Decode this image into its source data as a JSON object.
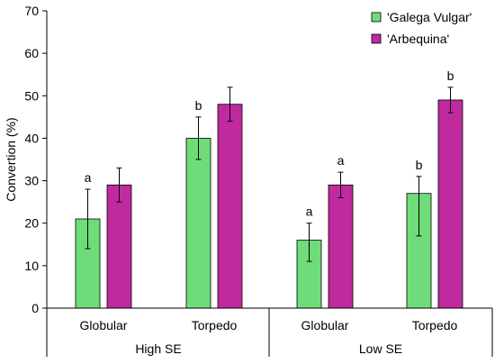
{
  "chart_data": {
    "type": "bar",
    "ylabel": "Convertion (%)",
    "ylim": [
      0,
      70
    ],
    "yticks": [
      0,
      10,
      20,
      30,
      40,
      50,
      60,
      70
    ],
    "grid": false,
    "legend_position": "top-right",
    "groups": [
      {
        "label": "High SE",
        "categories": [
          "Globular",
          "Torpedo"
        ]
      },
      {
        "label": "Low SE",
        "categories": [
          "Globular",
          "Torpedo"
        ]
      }
    ],
    "series": [
      {
        "name": "'Galega Vulgar'",
        "color": "#6fdc7a",
        "values": [
          21,
          40,
          16,
          27
        ],
        "error_low": [
          14,
          35,
          11,
          17
        ],
        "error_high": [
          28,
          45,
          20,
          31
        ],
        "significance": [
          "a",
          "b",
          "a",
          "b"
        ]
      },
      {
        "name": "'Arbequina'",
        "color": "#c02a9e",
        "values": [
          29,
          48,
          29,
          49
        ],
        "error_low": [
          25,
          44,
          26,
          46
        ],
        "error_high": [
          33,
          52,
          32,
          52
        ],
        "significance": [
          "",
          "",
          "a",
          "b"
        ]
      }
    ]
  }
}
